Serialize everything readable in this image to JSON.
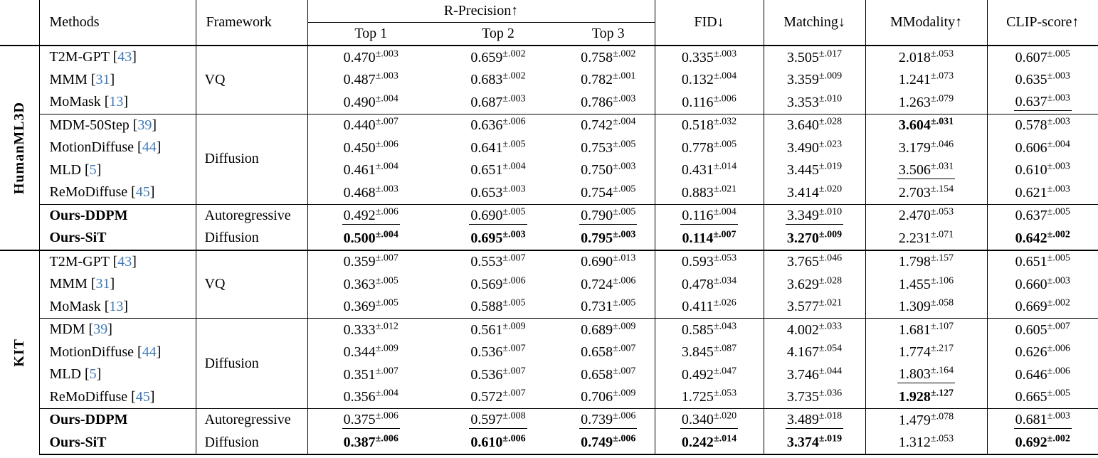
{
  "table": {
    "colors": {
      "citation": "#3d79b8"
    },
    "header": {
      "methods": "Methods",
      "framework": "Framework",
      "r_precision": "R-Precision↑",
      "top1": "Top 1",
      "top2": "Top 2",
      "top3": "Top 3",
      "fid": "FID↓",
      "matching": "Matching↓",
      "mmodality": "MModality↑",
      "clip": "CLIP-score↑"
    },
    "sections": [
      {
        "label": "HumanML3D",
        "subgroups": [
          {
            "framework": "VQ",
            "rows": [
              {
                "method": "T2M-GPT",
                "cite": "43",
                "bold": false,
                "cells": [
                  [
                    "0.470",
                    "±.003"
                  ],
                  [
                    "0.659",
                    "±.002"
                  ],
                  [
                    "0.758",
                    "±.002"
                  ],
                  [
                    "0.335",
                    "±.003"
                  ],
                  [
                    "3.505",
                    "±.017"
                  ],
                  [
                    "2.018",
                    "±.053"
                  ],
                  [
                    "0.607",
                    "±.005"
                  ]
                ]
              },
              {
                "method": "MMM",
                "cite": "31",
                "bold": false,
                "cells": [
                  [
                    "0.487",
                    "±.003"
                  ],
                  [
                    "0.683",
                    "±.002"
                  ],
                  [
                    "0.782",
                    "±.001"
                  ],
                  [
                    "0.132",
                    "±.004"
                  ],
                  [
                    "3.359",
                    "±.009"
                  ],
                  [
                    "1.241",
                    "±.073"
                  ],
                  [
                    "0.635",
                    "±.003"
                  ]
                ]
              },
              {
                "method": "MoMask",
                "cite": "13",
                "bold": false,
                "cells": [
                  [
                    "0.490",
                    "±.004"
                  ],
                  [
                    "0.687",
                    "±.003"
                  ],
                  [
                    "0.786",
                    "±.003"
                  ],
                  [
                    "0.116",
                    "±.006"
                  ],
                  [
                    "3.353",
                    "±.010"
                  ],
                  [
                    "1.263",
                    "±.079"
                  ],
                  [
                    "0.637",
                    "±.003",
                    "u"
                  ]
                ]
              }
            ]
          },
          {
            "framework": "Diffusion",
            "rows": [
              {
                "method": "MDM-50Step",
                "cite": "39",
                "bold": false,
                "cells": [
                  [
                    "0.440",
                    "±.007"
                  ],
                  [
                    "0.636",
                    "±.006"
                  ],
                  [
                    "0.742",
                    "±.004"
                  ],
                  [
                    "0.518",
                    "±.032"
                  ],
                  [
                    "3.640",
                    "±.028"
                  ],
                  [
                    "3.604",
                    "±.031",
                    "b"
                  ],
                  [
                    "0.578",
                    "±.003"
                  ]
                ]
              },
              {
                "method": "MotionDiffuse",
                "cite": "44",
                "bold": false,
                "cells": [
                  [
                    "0.450",
                    "±.006"
                  ],
                  [
                    "0.641",
                    "±.005"
                  ],
                  [
                    "0.753",
                    "±.005"
                  ],
                  [
                    "0.778",
                    "±.005"
                  ],
                  [
                    "3.490",
                    "±.023"
                  ],
                  [
                    "3.179",
                    "±.046"
                  ],
                  [
                    "0.606",
                    "±.004"
                  ]
                ]
              },
              {
                "method": "MLD",
                "cite": "5",
                "bold": false,
                "cells": [
                  [
                    "0.461",
                    "±.004"
                  ],
                  [
                    "0.651",
                    "±.004"
                  ],
                  [
                    "0.750",
                    "±.003"
                  ],
                  [
                    "0.431",
                    "±.014"
                  ],
                  [
                    "3.445",
                    "±.019"
                  ],
                  [
                    "3.506",
                    "±.031",
                    "u"
                  ],
                  [
                    "0.610",
                    "±.003"
                  ]
                ]
              },
              {
                "method": "ReMoDiffuse",
                "cite": "45",
                "bold": false,
                "cells": [
                  [
                    "0.468",
                    "±.003"
                  ],
                  [
                    "0.653",
                    "±.003"
                  ],
                  [
                    "0.754",
                    "±.005"
                  ],
                  [
                    "0.883",
                    "±.021"
                  ],
                  [
                    "3.414",
                    "±.020"
                  ],
                  [
                    "2.703",
                    "±.154"
                  ],
                  [
                    "0.621",
                    "±.003"
                  ]
                ]
              }
            ]
          },
          {
            "framework": null,
            "rows": [
              {
                "method": "Ours-DDPM",
                "cite": null,
                "bold": true,
                "framework": "Autoregressive",
                "cells": [
                  [
                    "0.492",
                    "±.006",
                    "u"
                  ],
                  [
                    "0.690",
                    "±.005",
                    "u"
                  ],
                  [
                    "0.790",
                    "±.005",
                    "u"
                  ],
                  [
                    "0.116",
                    "±.004",
                    "u"
                  ],
                  [
                    "3.349",
                    "±.010",
                    "u"
                  ],
                  [
                    "2.470",
                    "±.053"
                  ],
                  [
                    "0.637",
                    "±.005"
                  ]
                ]
              },
              {
                "method": "Ours-SiT",
                "cite": null,
                "bold": true,
                "framework": "Diffusion",
                "cells": [
                  [
                    "0.500",
                    "±.004",
                    "b"
                  ],
                  [
                    "0.695",
                    "±.003",
                    "b"
                  ],
                  [
                    "0.795",
                    "±.003",
                    "b"
                  ],
                  [
                    "0.114",
                    "±.007",
                    "b"
                  ],
                  [
                    "3.270",
                    "±.009",
                    "b"
                  ],
                  [
                    "2.231",
                    "±.071"
                  ],
                  [
                    "0.642",
                    "±.002",
                    "b"
                  ]
                ]
              }
            ]
          }
        ]
      },
      {
        "label": "KIT",
        "subgroups": [
          {
            "framework": "VQ",
            "rows": [
              {
                "method": "T2M-GPT",
                "cite": "43",
                "bold": false,
                "cells": [
                  [
                    "0.359",
                    "±.007"
                  ],
                  [
                    "0.553",
                    "±.007"
                  ],
                  [
                    "0.690",
                    "±.013"
                  ],
                  [
                    "0.593",
                    "±.053"
                  ],
                  [
                    "3.765",
                    "±.046"
                  ],
                  [
                    "1.798",
                    "±.157"
                  ],
                  [
                    "0.651",
                    "±.005"
                  ]
                ]
              },
              {
                "method": "MMM",
                "cite": "31",
                "bold": false,
                "cells": [
                  [
                    "0.363",
                    "±.005"
                  ],
                  [
                    "0.569",
                    "±.006"
                  ],
                  [
                    "0.724",
                    "±.006"
                  ],
                  [
                    "0.478",
                    "±.034"
                  ],
                  [
                    "3.629",
                    "±.028"
                  ],
                  [
                    "1.455",
                    "±.106"
                  ],
                  [
                    "0.660",
                    "±.003"
                  ]
                ]
              },
              {
                "method": "MoMask",
                "cite": "13",
                "bold": false,
                "cells": [
                  [
                    "0.369",
                    "±.005"
                  ],
                  [
                    "0.588",
                    "±.005"
                  ],
                  [
                    "0.731",
                    "±.005"
                  ],
                  [
                    "0.411",
                    "±.026"
                  ],
                  [
                    "3.577",
                    "±.021"
                  ],
                  [
                    "1.309",
                    "±.058"
                  ],
                  [
                    "0.669",
                    "±.002"
                  ]
                ]
              }
            ]
          },
          {
            "framework": "Diffusion",
            "rows": [
              {
                "method": "MDM",
                "cite": "39",
                "bold": false,
                "cells": [
                  [
                    "0.333",
                    "±.012"
                  ],
                  [
                    "0.561",
                    "±.009"
                  ],
                  [
                    "0.689",
                    "±.009"
                  ],
                  [
                    "0.585",
                    "±.043"
                  ],
                  [
                    "4.002",
                    "±.033"
                  ],
                  [
                    "1.681",
                    "±.107"
                  ],
                  [
                    "0.605",
                    "±.007"
                  ]
                ]
              },
              {
                "method": "MotionDiffuse",
                "cite": "44",
                "bold": false,
                "cells": [
                  [
                    "0.344",
                    "±.009"
                  ],
                  [
                    "0.536",
                    "±.007"
                  ],
                  [
                    "0.658",
                    "±.007"
                  ],
                  [
                    "3.845",
                    "±.087"
                  ],
                  [
                    "4.167",
                    "±.054"
                  ],
                  [
                    "1.774",
                    "±.217"
                  ],
                  [
                    "0.626",
                    "±.006"
                  ]
                ]
              },
              {
                "method": "MLD",
                "cite": "5",
                "bold": false,
                "cells": [
                  [
                    "0.351",
                    "±.007"
                  ],
                  [
                    "0.536",
                    "±.007"
                  ],
                  [
                    "0.658",
                    "±.007"
                  ],
                  [
                    "0.492",
                    "±.047"
                  ],
                  [
                    "3.746",
                    "±.044"
                  ],
                  [
                    "1.803",
                    "±.164",
                    "u"
                  ],
                  [
                    "0.646",
                    "±.006"
                  ]
                ]
              },
              {
                "method": "ReMoDiffuse",
                "cite": "45",
                "bold": false,
                "cells": [
                  [
                    "0.356",
                    "±.004"
                  ],
                  [
                    "0.572",
                    "±.007"
                  ],
                  [
                    "0.706",
                    "±.009"
                  ],
                  [
                    "1.725",
                    "±.053"
                  ],
                  [
                    "3.735",
                    "±.036"
                  ],
                  [
                    "1.928",
                    "±.127",
                    "b"
                  ],
                  [
                    "0.665",
                    "±.005"
                  ]
                ]
              }
            ]
          },
          {
            "framework": null,
            "rows": [
              {
                "method": "Ours-DDPM",
                "cite": null,
                "bold": true,
                "framework": "Autoregressive",
                "cells": [
                  [
                    "0.375",
                    "±.006",
                    "u"
                  ],
                  [
                    "0.597",
                    "±.008",
                    "u"
                  ],
                  [
                    "0.739",
                    "±.006",
                    "u"
                  ],
                  [
                    "0.340",
                    "±.020",
                    "u"
                  ],
                  [
                    "3.489",
                    "±.018",
                    "u"
                  ],
                  [
                    "1.479",
                    "±.078"
                  ],
                  [
                    "0.681",
                    "±.003",
                    "u"
                  ]
                ]
              },
              {
                "method": "Ours-SiT",
                "cite": null,
                "bold": true,
                "framework": "Diffusion",
                "cells": [
                  [
                    "0.387",
                    "±.006",
                    "b"
                  ],
                  [
                    "0.610",
                    "±.006",
                    "b"
                  ],
                  [
                    "0.749",
                    "±.006",
                    "b"
                  ],
                  [
                    "0.242",
                    "±.014",
                    "b"
                  ],
                  [
                    "3.374",
                    "±.019",
                    "b"
                  ],
                  [
                    "1.312",
                    "±.053"
                  ],
                  [
                    "0.692",
                    "±.002",
                    "b"
                  ]
                ]
              }
            ]
          }
        ]
      }
    ]
  }
}
